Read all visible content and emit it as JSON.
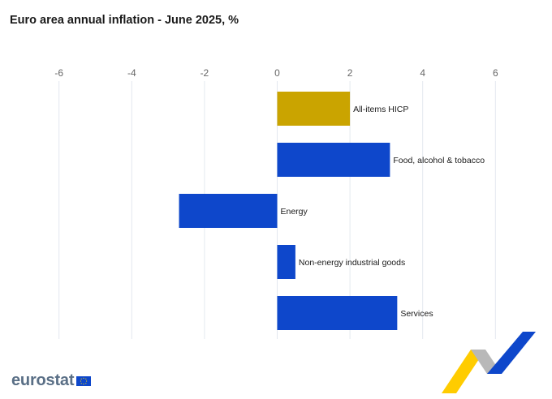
{
  "title": "Euro area annual inflation - June 2025, %",
  "logo_text": "eurostat",
  "chart_data": {
    "type": "bar",
    "orientation": "horizontal",
    "title": "Euro area annual inflation - June 2025, %",
    "xlabel": "",
    "ylabel": "",
    "xlim": [
      -6,
      7
    ],
    "x_ticks": [
      -6,
      -4,
      -2,
      0,
      2,
      4,
      6
    ],
    "categories": [
      "All-items HICP",
      "Food, alcohol & tobacco",
      "Energy",
      "Non-energy industrial goods",
      "Services"
    ],
    "values": [
      2.0,
      3.1,
      -2.7,
      0.5,
      3.3
    ],
    "colors": [
      "#caa400",
      "#0e47cb",
      "#0e47cb",
      "#0e47cb",
      "#0e47cb"
    ],
    "grid": true,
    "legend": "none"
  }
}
